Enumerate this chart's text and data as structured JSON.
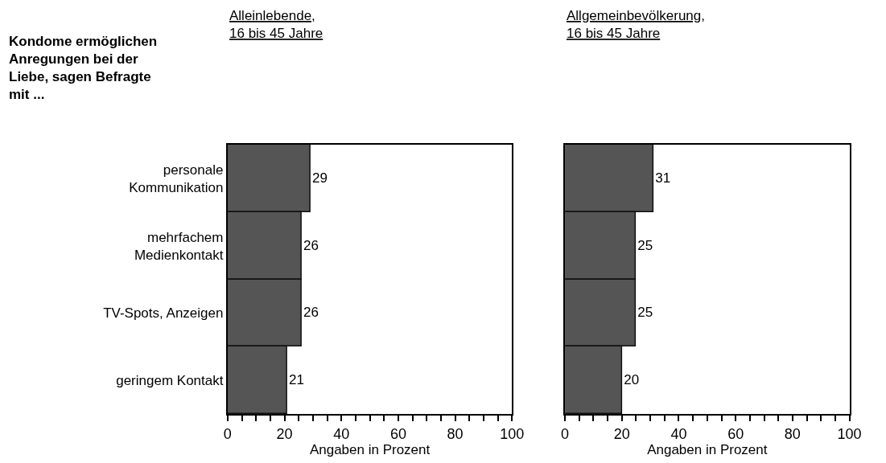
{
  "chart_data": [
    {
      "type": "bar",
      "orientation": "horizontal",
      "title": "Alleinlebende,\n16 bis 45 Jahre",
      "xlabel": "Angaben in Prozent",
      "annotations": [
        "Kondome ermöglichen\nAnregungen bei der\nLiebe, sagen Befragte\nmit ..."
      ],
      "categories": [
        "personale\nKommunikation",
        "mehrfachem\nMedienkontakt",
        "TV-Spots, Anzeigen",
        "geringem Kontakt"
      ],
      "values": [
        29,
        26,
        26,
        21
      ],
      "color": "#555555",
      "data_labels": true,
      "xlim": [
        0,
        100
      ],
      "xticks": [
        0,
        {
          "value": 5,
          "label": null
        },
        {
          "value": 10,
          "label": null
        },
        {
          "value": 15,
          "label": null
        },
        20,
        {
          "value": 25,
          "label": null
        },
        {
          "value": 30,
          "label": null
        },
        {
          "value": 35,
          "label": null
        },
        40,
        {
          "value": 45,
          "label": null
        },
        {
          "value": 50,
          "label": null
        },
        {
          "value": 55,
          "label": null
        },
        60,
        {
          "value": 65,
          "label": null
        },
        {
          "value": 70,
          "label": null
        },
        {
          "value": 75,
          "label": null
        },
        80,
        {
          "value": 85,
          "label": null
        },
        {
          "value": 90,
          "label": null
        },
        {
          "value": 95,
          "label": null
        },
        100
      ]
    },
    {
      "type": "bar",
      "orientation": "horizontal",
      "title": "Allgemeinbevölkerung,\n16 bis 45 Jahre",
      "xlabel": "Angaben in Prozent",
      "categories": [
        null,
        null,
        null,
        null
      ],
      "values": [
        31,
        25,
        25,
        20
      ],
      "color": "#555555",
      "data_labels": true,
      "tick_labels": "x",
      "xlim": [
        0,
        100
      ],
      "xticks": [
        0,
        {
          "value": 5,
          "label": null
        },
        {
          "value": 10,
          "label": null
        },
        {
          "value": 15,
          "label": null
        },
        20,
        {
          "value": 25,
          "label": null
        },
        {
          "value": 30,
          "label": null
        },
        {
          "value": 35,
          "label": null
        },
        40,
        {
          "value": 45,
          "label": null
        },
        {
          "value": 50,
          "label": null
        },
        {
          "value": 55,
          "label": null
        },
        60,
        {
          "value": 65,
          "label": null
        },
        {
          "value": 70,
          "label": null
        },
        {
          "value": 75,
          "label": null
        },
        80,
        {
          "value": 85,
          "label": null
        },
        {
          "value": 90,
          "label": null
        },
        {
          "value": 95,
          "label": null
        },
        100
      ]
    }
  ]
}
